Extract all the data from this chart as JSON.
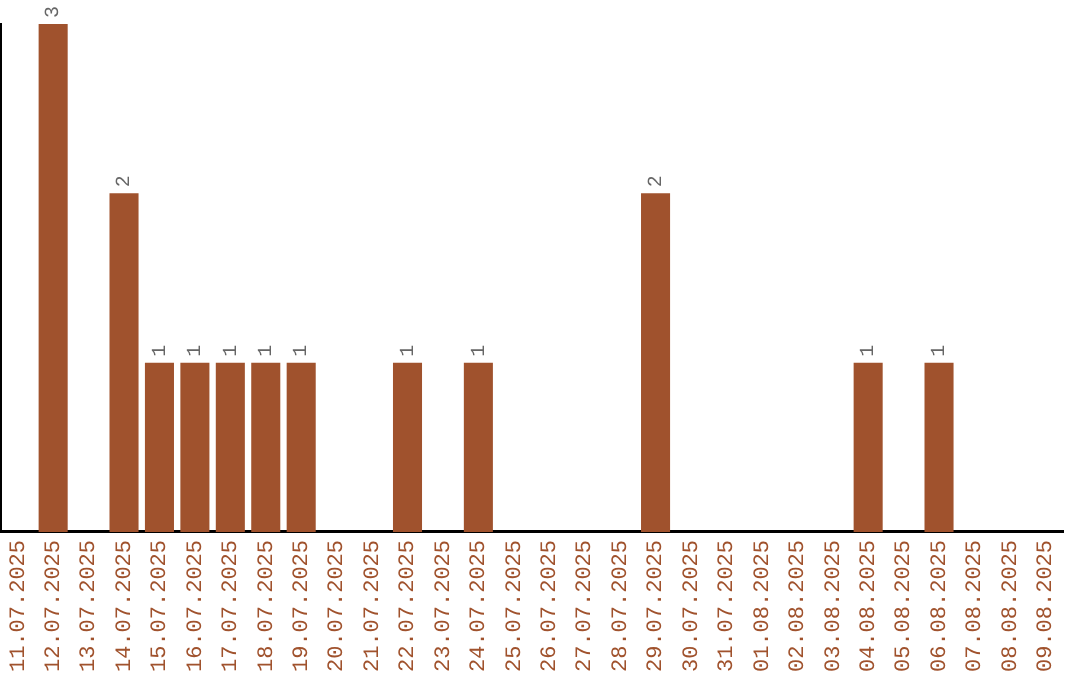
{
  "chart_data": {
    "type": "bar",
    "categories": [
      "11.07.2025",
      "12.07.2025",
      "13.07.2025",
      "14.07.2025",
      "15.07.2025",
      "16.07.2025",
      "17.07.2025",
      "18.07.2025",
      "19.07.2025",
      "20.07.2025",
      "21.07.2025",
      "22.07.2025",
      "23.07.2025",
      "24.07.2025",
      "25.07.2025",
      "26.07.2025",
      "27.07.2025",
      "28.07.2025",
      "29.07.2025",
      "30.07.2025",
      "31.07.2025",
      "01.08.2025",
      "02.08.2025",
      "03.08.2025",
      "04.08.2025",
      "05.08.2025",
      "06.08.2025",
      "07.08.2025",
      "08.08.2025",
      "09.08.2025"
    ],
    "values": [
      null,
      3,
      null,
      2,
      1,
      1,
      1,
      1,
      1,
      null,
      null,
      1,
      null,
      1,
      null,
      null,
      null,
      null,
      2,
      null,
      null,
      null,
      null,
      null,
      1,
      null,
      1,
      null,
      null,
      null
    ],
    "color": "#a0522d",
    "data_labels": true,
    "grid": false,
    "legend": false
  }
}
